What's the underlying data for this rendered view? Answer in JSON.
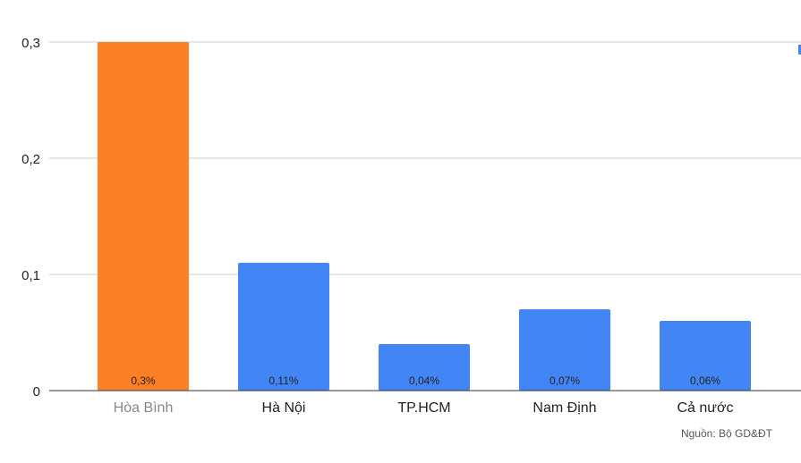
{
  "chart_data": {
    "type": "bar",
    "title": "",
    "xlabel": "",
    "ylabel": "",
    "categories": [
      "Hòa Bình",
      "Hà Nội",
      "TP.HCM",
      "Nam Định",
      "Cả nước"
    ],
    "values": [
      0.3,
      0.11,
      0.04,
      0.07,
      0.06
    ],
    "data_labels": [
      "0,3%",
      "0,11%",
      "0,04%",
      "0,07%",
      "0,06%"
    ],
    "bar_colors": [
      "#fd7f27",
      "#4285f4",
      "#4285f4",
      "#4285f4",
      "#4285f4"
    ],
    "highlight_category_label_color": "#888888",
    "category_label_color": "#222222",
    "ylim": [
      0,
      0.3
    ],
    "yticks": [
      0,
      0.1,
      0.2,
      0.3
    ],
    "ytick_labels": [
      "0",
      "0,1",
      "0,2",
      "0,3"
    ],
    "grid": true
  },
  "footer": {
    "source": "Nguồn: Bộ GD&ĐT"
  }
}
